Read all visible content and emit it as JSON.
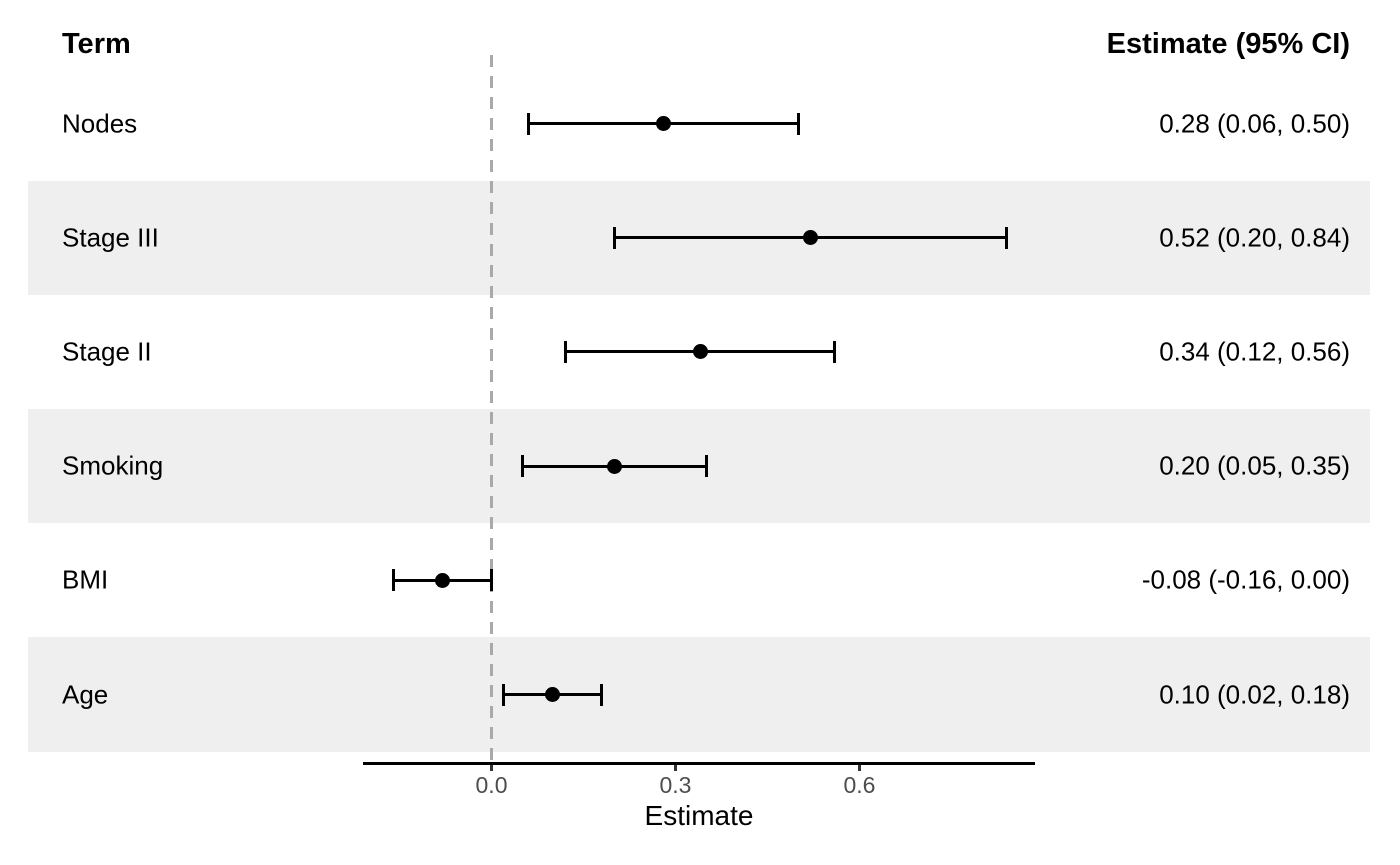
{
  "chart_data": {
    "type": "forest",
    "columns": {
      "term_header": "Term",
      "estimate_header": "Estimate (95% CI)"
    },
    "rows": [
      {
        "term": "Nodes",
        "estimate": 0.28,
        "ci_low": 0.06,
        "ci_high": 0.5,
        "estimate_label": "0.28 (0.06, 0.50)",
        "striped": false
      },
      {
        "term": "Stage III",
        "estimate": 0.52,
        "ci_low": 0.2,
        "ci_high": 0.84,
        "estimate_label": "0.52 (0.20, 0.84)",
        "striped": true
      },
      {
        "term": "Stage II",
        "estimate": 0.34,
        "ci_low": 0.12,
        "ci_high": 0.56,
        "estimate_label": "0.34 (0.12, 0.56)",
        "striped": false
      },
      {
        "term": "Smoking",
        "estimate": 0.2,
        "ci_low": 0.05,
        "ci_high": 0.35,
        "estimate_label": "0.20 (0.05, 0.35)",
        "striped": true
      },
      {
        "term": "BMI",
        "estimate": -0.08,
        "ci_low": -0.16,
        "ci_high": 0.0,
        "estimate_label": "-0.08 (-0.16, 0.00)",
        "striped": false
      },
      {
        "term": "Age",
        "estimate": 0.1,
        "ci_low": 0.02,
        "ci_high": 0.18,
        "estimate_label": "0.10 (0.02, 0.18)",
        "striped": true
      }
    ],
    "xlabel": "Estimate",
    "x_ticks": [
      {
        "value": 0.0,
        "label": "0.0"
      },
      {
        "value": 0.3,
        "label": "0.3"
      },
      {
        "value": 0.6,
        "label": "0.6"
      }
    ],
    "x_range": [
      -0.209,
      0.887
    ],
    "reference_line": 0.0,
    "legend": "none",
    "grid": "off",
    "colors": {
      "background": "#FFFFFF",
      "stripe": "#EFEFEF",
      "point": "#000000",
      "ci_line": "#000000",
      "reference_line": "#A9A9A9",
      "axis_line": "#000000",
      "tick_mark": "#333333",
      "tick_label": "#4D4D4D",
      "text": "#000000"
    }
  }
}
